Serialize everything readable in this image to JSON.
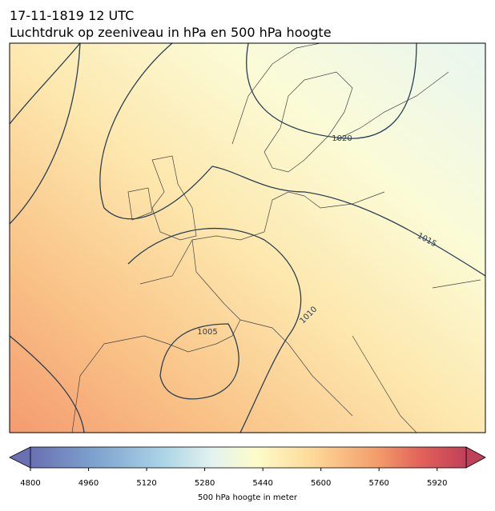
{
  "header": {
    "title_line1": "17-11-1819 12 UTC",
    "title_line2": "Luchtdruk op zeeniveau in hPa en 500 hPa hoogte"
  },
  "isobar_labels": [
    "1020",
    "1015",
    "1010",
    "1005"
  ],
  "colorbar": {
    "label": "500 hPa hoogte in meter",
    "lim": [
      4800,
      6000
    ],
    "ticks": [
      4800,
      4960,
      5120,
      5280,
      5440,
      5600,
      5760,
      5920
    ]
  }
}
